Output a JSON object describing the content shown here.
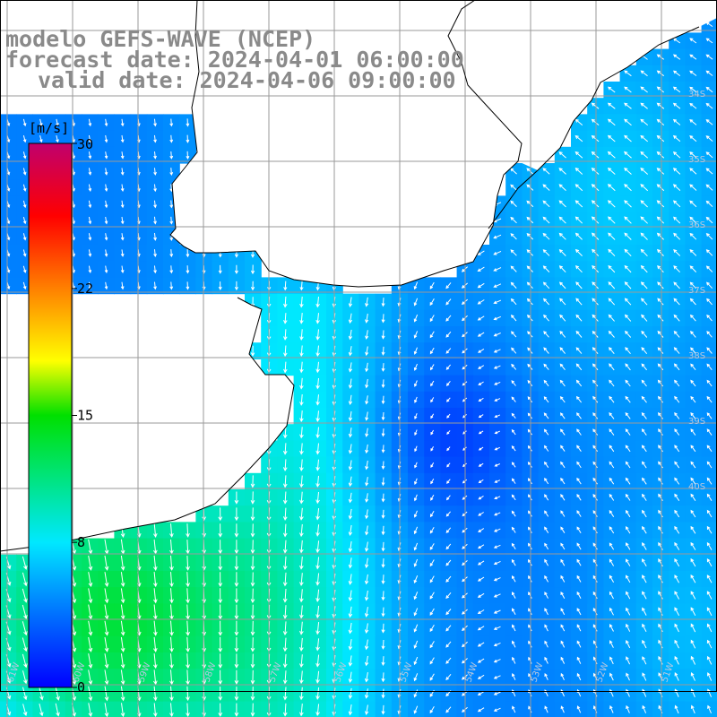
{
  "title": {
    "line1": "modelo GEFS-WAVE (NCEP)",
    "line2": "forecast date: 2024-04-01 06:00:00",
    "line3": "valid date: 2024-04-06 09:00:00"
  },
  "colorbar": {
    "units": "[m/s]",
    "ticks": [
      {
        "label": "30",
        "value": 30
      },
      {
        "label": "22",
        "value": 22
      },
      {
        "label": "15",
        "value": 15
      },
      {
        "label": "8",
        "value": 8
      },
      {
        "label": "0",
        "value": 0
      }
    ],
    "colors": [
      "#0000ff",
      "#0070ff",
      "#00e8ff",
      "#00e000",
      "#ffff00",
      "#ff8000",
      "#ff0000",
      "#c0006e"
    ]
  },
  "map": {
    "field": "wind speed",
    "land_color": "#ffffff",
    "grid_color": "#9a9a9a"
  },
  "lat_labels": [
    "34S",
    "35S",
    "36S",
    "37S",
    "38S",
    "39S",
    "40S"
  ],
  "lon_labels": [
    "61W",
    "60W",
    "59W",
    "58W",
    "57W",
    "56W",
    "55W",
    "54W",
    "53W",
    "52W",
    "51W"
  ]
}
